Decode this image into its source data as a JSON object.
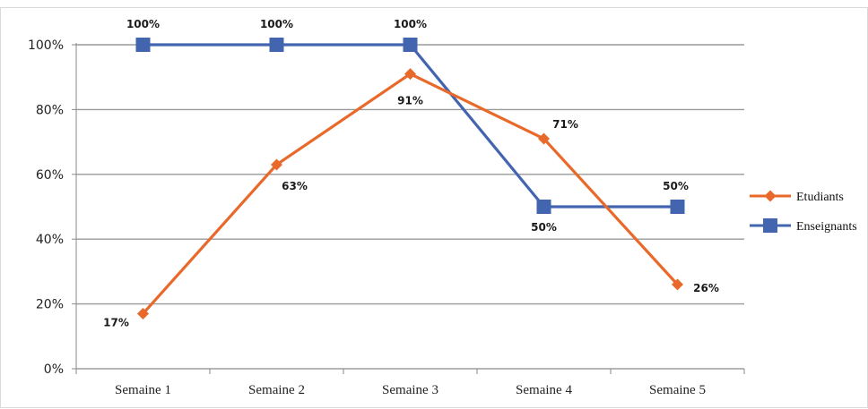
{
  "chart_data": {
    "type": "line",
    "categories": [
      "Semaine 1",
      "Semaine 2",
      "Semaine 3",
      "Semaine 4",
      "Semaine 5"
    ],
    "ylim": [
      0,
      100
    ],
    "yticks": [
      0,
      20,
      40,
      60,
      80,
      100
    ],
    "ytick_labels": [
      "0%",
      "20%",
      "40%",
      "60%",
      "80%",
      "100%"
    ],
    "grid": true,
    "legend_position": "right",
    "series": [
      {
        "name": "Etudiants",
        "color": "#E8692A",
        "marker": "diamond",
        "values": [
          17,
          63,
          91,
          71,
          26
        ],
        "labels": [
          "17%",
          "63%",
          "91%",
          "71%",
          "26%"
        ]
      },
      {
        "name": "Enseignants",
        "color": "#4365B0",
        "marker": "square",
        "values": [
          100,
          100,
          100,
          50,
          50
        ],
        "labels": [
          "100%",
          "100%",
          "100%",
          "50%",
          "50%"
        ]
      }
    ]
  }
}
